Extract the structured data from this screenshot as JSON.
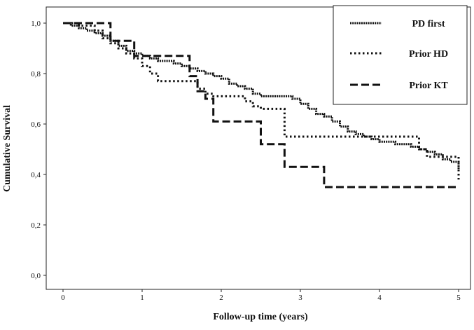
{
  "chart_data": {
    "type": "line",
    "subtype": "kaplan-meier-step",
    "title": "",
    "xlabel": "Follow-up time (years)",
    "ylabel": "Cumulative Survival",
    "xlim": [
      0,
      5
    ],
    "ylim": [
      0,
      1
    ],
    "x_ticks": [
      0,
      1,
      2,
      3,
      4,
      5
    ],
    "x_tick_labels": [
      "0",
      "1",
      "2",
      "3",
      "4",
      "5"
    ],
    "y_ticks": [
      0,
      0.2,
      0.4,
      0.6,
      0.8,
      1.0
    ],
    "y_tick_labels": [
      "0,0",
      "0,2",
      "0,4",
      "0,6",
      "0,8",
      "1,0"
    ],
    "grid": false,
    "legend_position": "top-right",
    "series": [
      {
        "name": "PD first",
        "line_style": "dense-dotted",
        "color": "#111111",
        "x": [
          0,
          0.1,
          0.2,
          0.3,
          0.4,
          0.5,
          0.6,
          0.7,
          0.8,
          0.9,
          1.0,
          1.1,
          1.2,
          1.3,
          1.4,
          1.5,
          1.6,
          1.7,
          1.8,
          1.9,
          2.0,
          2.1,
          2.2,
          2.3,
          2.4,
          2.5,
          2.6,
          2.7,
          2.8,
          2.9,
          3.0,
          3.1,
          3.2,
          3.3,
          3.4,
          3.5,
          3.6,
          3.7,
          3.8,
          3.9,
          4.0,
          4.1,
          4.2,
          4.3,
          4.4,
          4.5,
          4.6,
          4.7,
          4.8,
          4.9,
          5.0
        ],
        "y": [
          1.0,
          0.99,
          0.98,
          0.97,
          0.96,
          0.95,
          0.93,
          0.91,
          0.89,
          0.88,
          0.87,
          0.86,
          0.85,
          0.85,
          0.84,
          0.83,
          0.82,
          0.81,
          0.8,
          0.79,
          0.78,
          0.76,
          0.75,
          0.74,
          0.72,
          0.71,
          0.71,
          0.71,
          0.71,
          0.7,
          0.68,
          0.66,
          0.64,
          0.63,
          0.61,
          0.59,
          0.57,
          0.56,
          0.55,
          0.54,
          0.53,
          0.53,
          0.52,
          0.52,
          0.51,
          0.5,
          0.49,
          0.48,
          0.46,
          0.45,
          0.41
        ]
      },
      {
        "name": "Prior HD",
        "line_style": "dotted",
        "color": "#111111",
        "x": [
          0,
          0.2,
          0.4,
          0.5,
          0.6,
          0.7,
          0.8,
          0.9,
          1.0,
          1.1,
          1.2,
          1.3,
          1.4,
          1.5,
          1.6,
          1.7,
          1.8,
          1.9,
          2.0,
          2.1,
          2.2,
          2.3,
          2.4,
          2.5,
          2.6,
          2.7,
          2.8,
          2.9,
          3.0,
          3.5,
          4.0,
          4.4,
          4.5,
          4.6,
          4.7,
          4.8,
          4.9,
          5.0
        ],
        "y": [
          1.0,
          0.99,
          0.97,
          0.94,
          0.92,
          0.9,
          0.88,
          0.86,
          0.83,
          0.8,
          0.77,
          0.77,
          0.77,
          0.77,
          0.77,
          0.74,
          0.72,
          0.71,
          0.71,
          0.71,
          0.71,
          0.69,
          0.67,
          0.66,
          0.66,
          0.66,
          0.55,
          0.55,
          0.55,
          0.55,
          0.55,
          0.55,
          0.5,
          0.47,
          0.47,
          0.47,
          0.47,
          0.38
        ]
      },
      {
        "name": "Prior KT",
        "line_style": "dashed",
        "color": "#111111",
        "x": [
          0,
          0.4,
          0.6,
          0.9,
          1.0,
          1.6,
          1.7,
          1.8,
          1.9,
          2.0,
          2.1,
          2.2,
          2.3,
          2.4,
          2.5,
          2.6,
          2.7,
          2.8,
          3.0,
          3.2,
          3.3,
          3.6,
          4.0,
          4.5,
          5.0
        ],
        "y": [
          1.0,
          1.0,
          0.93,
          0.87,
          0.87,
          0.79,
          0.73,
          0.7,
          0.61,
          0.61,
          0.61,
          0.61,
          0.61,
          0.61,
          0.52,
          0.52,
          0.52,
          0.43,
          0.43,
          0.43,
          0.35,
          0.35,
          0.35,
          0.35,
          0.35
        ]
      }
    ]
  }
}
